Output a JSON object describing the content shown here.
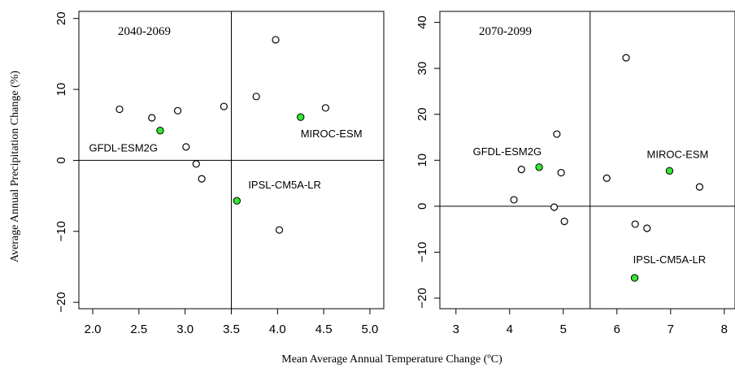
{
  "ylabel": "Average Annual Precipitation Change (%)",
  "xlabel": "Mean Average Annual  Temperature Change (ºC)",
  "colors": {
    "highlight_fill": "#33e633",
    "point_stroke": "#000000",
    "axis": "#000000"
  },
  "chart_data": [
    {
      "type": "scatter",
      "title": "2040-2069",
      "xlim": [
        1.85,
        5.15
      ],
      "ylim": [
        -20.9,
        21.0
      ],
      "xticks": [
        2.0,
        2.5,
        3.0,
        3.5,
        4.0,
        4.5,
        5.0
      ],
      "xtick_labels": [
        "2.0",
        "2.5",
        "3.0",
        "3.5",
        "4.0",
        "4.5",
        "5.0"
      ],
      "yticks": [
        -20,
        -10,
        0,
        10,
        20
      ],
      "ytick_labels": [
        "−20",
        "−10",
        "0",
        "10",
        "20"
      ],
      "reference_lines": {
        "x": 3.5,
        "y": 0
      },
      "points": [
        {
          "x": 2.29,
          "y": 7.2
        },
        {
          "x": 2.64,
          "y": 6.0
        },
        {
          "x": 2.92,
          "y": 7.0
        },
        {
          "x": 3.01,
          "y": 1.9
        },
        {
          "x": 3.12,
          "y": -0.5
        },
        {
          "x": 3.18,
          "y": -2.6
        },
        {
          "x": 3.42,
          "y": 7.6
        },
        {
          "x": 3.77,
          "y": 9.0
        },
        {
          "x": 3.98,
          "y": 17.0
        },
        {
          "x": 4.52,
          "y": 7.4
        },
        {
          "x": 4.02,
          "y": -9.8
        }
      ],
      "highlighted_points": [
        {
          "x": 2.73,
          "y": 4.2,
          "label": "GFDL-ESM2G",
          "label_anchor": "end",
          "label_dx": -3,
          "label_dy": 26
        },
        {
          "x": 3.56,
          "y": -5.7,
          "label": "IPSL-CM5A-LR",
          "label_anchor": "start",
          "label_dx": 14,
          "label_dy": -15
        },
        {
          "x": 4.25,
          "y": 6.1,
          "label": "MIROC-ESM",
          "label_anchor": "start",
          "label_dx": 0,
          "label_dy": 25
        }
      ]
    },
    {
      "type": "scatter",
      "title": "2070-2099",
      "xlim": [
        2.7,
        8.2
      ],
      "ylim": [
        -22.3,
        42.4
      ],
      "xticks": [
        3,
        4,
        5,
        6,
        7,
        8
      ],
      "xtick_labels": [
        "3",
        "4",
        "5",
        "6",
        "7",
        "8"
      ],
      "yticks": [
        -20,
        -10,
        0,
        10,
        20,
        30,
        40
      ],
      "ytick_labels": [
        "−20",
        "−10",
        "0",
        "10",
        "20",
        "30",
        "40"
      ],
      "reference_lines": {
        "x": 5.5,
        "y": 0
      },
      "points": [
        {
          "x": 4.08,
          "y": 1.4
        },
        {
          "x": 4.22,
          "y": 8.0
        },
        {
          "x": 4.83,
          "y": -0.2
        },
        {
          "x": 4.88,
          "y": 15.7
        },
        {
          "x": 4.96,
          "y": 7.3
        },
        {
          "x": 5.02,
          "y": -3.3
        },
        {
          "x": 5.81,
          "y": 6.1
        },
        {
          "x": 6.17,
          "y": 32.3
        },
        {
          "x": 6.34,
          "y": -3.9
        },
        {
          "x": 6.56,
          "y": -4.8
        },
        {
          "x": 7.54,
          "y": 4.2
        }
      ],
      "highlighted_points": [
        {
          "x": 4.55,
          "y": 8.5,
          "label": "GFDL-ESM2G",
          "label_anchor": "end",
          "label_dx": 3,
          "label_dy": -15
        },
        {
          "x": 6.98,
          "y": 7.7,
          "label": "MIROC-ESM",
          "label_anchor": "middle",
          "label_dx": 10,
          "label_dy": -16
        },
        {
          "x": 6.33,
          "y": -15.6,
          "label": "IPSL-CM5A-LR",
          "label_anchor": "start",
          "label_dx": -2,
          "label_dy": -18
        }
      ]
    }
  ]
}
